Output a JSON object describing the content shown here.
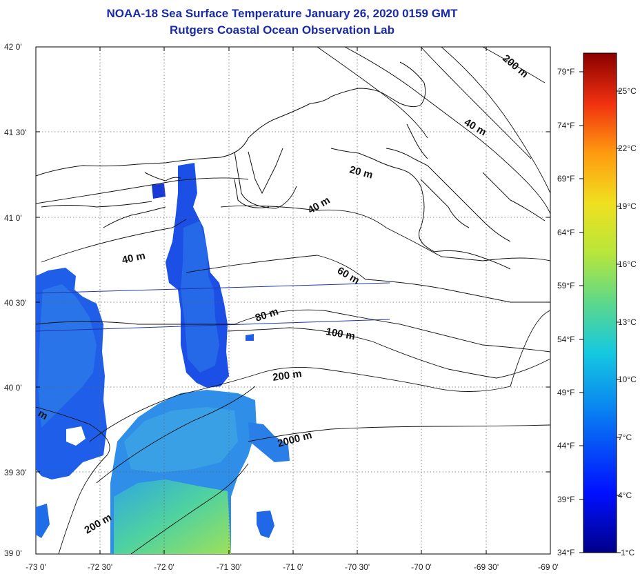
{
  "title": "NOAA-18 Sea Surface Temperature January 26, 2020 0159 GMT",
  "subtitle": "Rutgers Coastal Ocean Observation Lab",
  "latitude_labels": [
    "42 0'",
    "41 30'",
    "41 0'",
    "40 30'",
    "40 0'",
    "39 30'",
    "39 0'"
  ],
  "longitude_labels": [
    "-73 0'",
    "-72 30'",
    "-72 0'",
    "-71 30'",
    "-71 0'",
    "-70 30'",
    "-70 0'",
    "-69 30'",
    "-69 0'"
  ],
  "fahrenheit_labels": [
    "79°F",
    "74°F",
    "69°F",
    "64°F",
    "59°F",
    "54°F",
    "49°F",
    "44°F",
    "39°F",
    "34°F"
  ],
  "celsius_labels": [
    "25°C",
    "22°C",
    "19°C",
    "16°C",
    "13°C",
    "10°C",
    "7°C",
    "4°C",
    "1°C"
  ],
  "contour_labels": {
    "c200_ne": "200 m",
    "c40_ne": "40 m",
    "c20": "20 m",
    "c40_mid": "40 m",
    "c40_w": "40 m",
    "c60": "60 m",
    "c80": "80 m",
    "c100": "100 m",
    "c200_mid": "200 m",
    "c2000": "2000 m",
    "c200_sw": "200 m",
    "c_edge": "m"
  },
  "colors": {
    "title": "#1a2aa8",
    "coast": "#111111",
    "track": "#2233aa"
  }
}
